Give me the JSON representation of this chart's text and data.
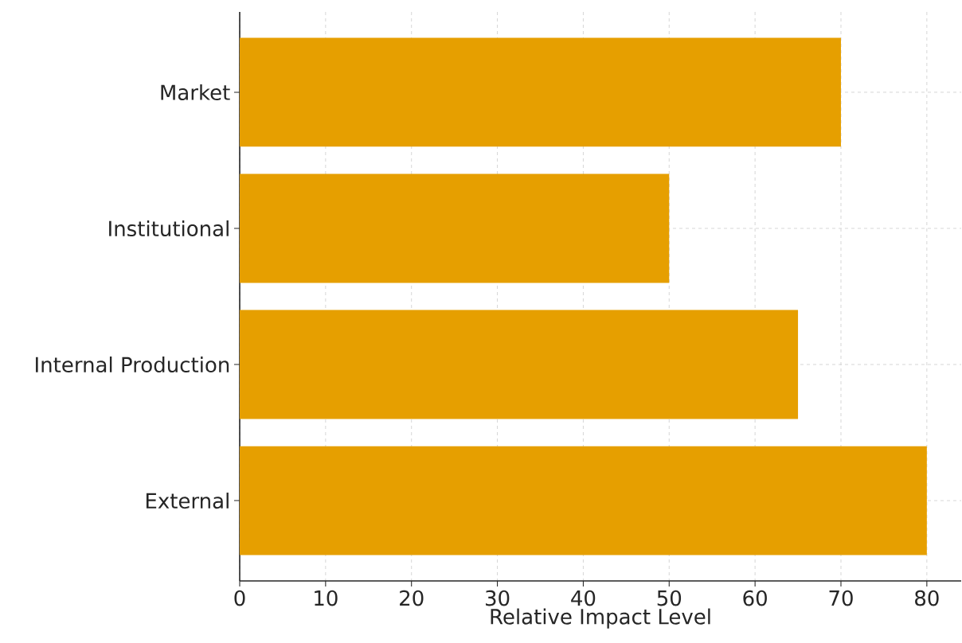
{
  "chart_data": {
    "type": "bar",
    "orientation": "horizontal",
    "xlabel": "Relative Impact Level",
    "categories": [
      "Market",
      "Institutional",
      "Internal Production",
      "External"
    ],
    "values": [
      70,
      50,
      65,
      80
    ],
    "color": "#e69f00",
    "xlim": [
      0,
      84
    ],
    "xticks": [
      0,
      10,
      20,
      30,
      40,
      50,
      60,
      70,
      80
    ],
    "grid": true
  }
}
